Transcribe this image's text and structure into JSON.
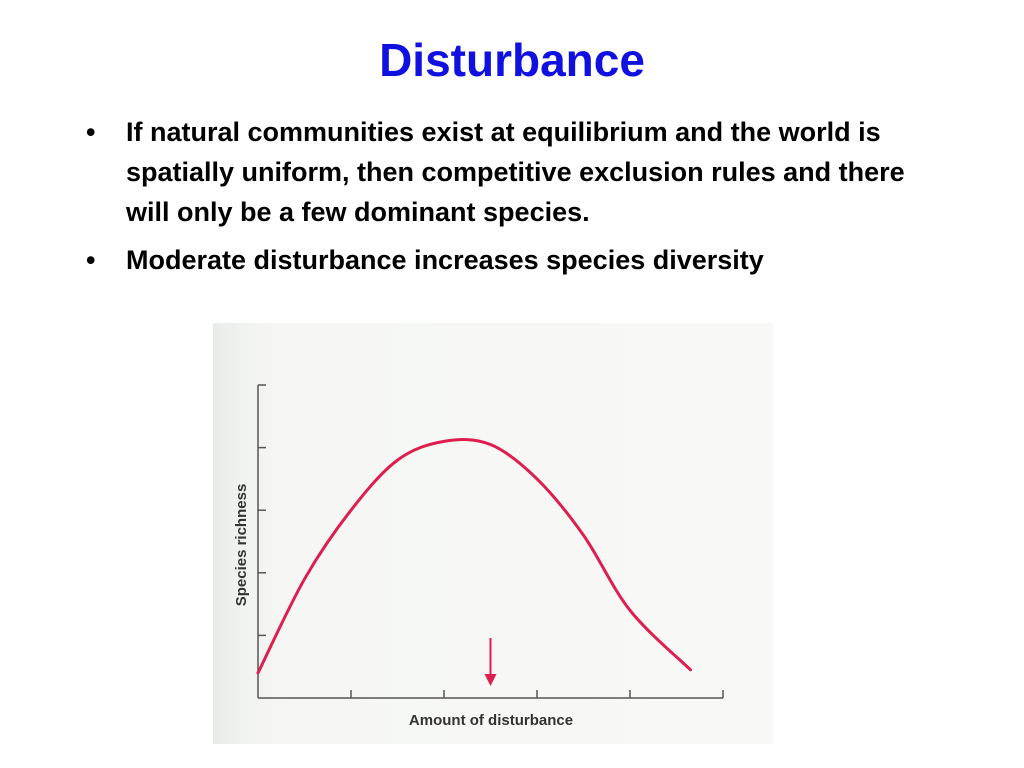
{
  "slide": {
    "title": "Disturbance",
    "bullets": [
      "If natural communities exist at equilibrium and the world is spatially uniform, then competitive exclusion rules and there will only be a few dominant species.",
      "Moderate disturbance increases species diversity"
    ]
  },
  "chart_data": {
    "type": "line",
    "xlabel": "Amount of disturbance",
    "ylabel": "Species richness",
    "x_ticks": 5,
    "y_ticks": 5,
    "xlim": [
      0,
      5
    ],
    "ylim": [
      0,
      5
    ],
    "series": [
      {
        "x": [
          0,
          0.5,
          1.0,
          1.5,
          2.0,
          2.5,
          3.0,
          3.5,
          4.0,
          4.65
        ],
        "y": [
          0.4,
          1.9,
          3.0,
          3.8,
          4.1,
          4.05,
          3.5,
          2.6,
          1.4,
          0.45
        ],
        "color": "#dd1e4e"
      }
    ],
    "annotations": [
      {
        "type": "arrow-down",
        "x": 2.5,
        "color": "#dd1e4e"
      }
    ],
    "colors": {
      "axis": "#555555",
      "curve": "#dd1e4e",
      "title": "#1010e0"
    }
  }
}
